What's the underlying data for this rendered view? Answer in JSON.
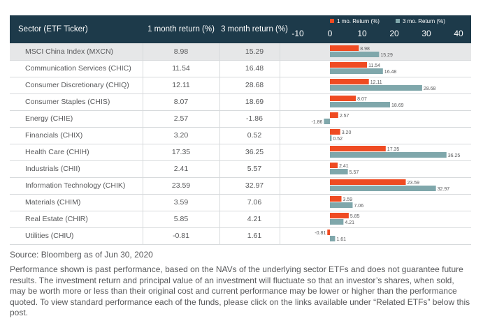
{
  "table": {
    "headers": [
      "Sector (ETF Ticker)",
      "1 month return  (%)",
      "3 month return (%)"
    ]
  },
  "chart_data": {
    "type": "bar",
    "orientation": "horizontal",
    "categories": [
      "MSCI China Index (MXCN)",
      "Communication Services (CHIC)",
      "Consumer Discretionary (CHIQ)",
      "Consumer Staples (CHIS)",
      "Energy (CHIE)",
      "Financials (CHIX)",
      "Health Care (CHIH)",
      "Industrials (CHII)",
      "Information Technology (CHIK)",
      "Materials (CHIM)",
      "Real Estate (CHIR)",
      "Utilities (CHIU)"
    ],
    "series": [
      {
        "name": "1 mo. Return (%)",
        "color": "#ef4b22",
        "values": [
          8.98,
          11.54,
          12.11,
          8.07,
          2.57,
          3.2,
          17.35,
          2.41,
          23.59,
          3.59,
          5.85,
          -0.81
        ]
      },
      {
        "name": "3 mo. Return (%)",
        "color": "#7fa7ab",
        "values": [
          15.29,
          16.48,
          28.68,
          18.69,
          -1.86,
          0.52,
          36.25,
          5.57,
          32.97,
          7.06,
          4.21,
          1.61
        ]
      }
    ],
    "display_1m": [
      "8.98",
      "11.54",
      "12.11",
      "8.07",
      "2.57",
      "3.20",
      "17.35",
      "2.41",
      "23.59",
      "3.59",
      "5.85",
      "-0.81"
    ],
    "display_3m": [
      "15.29",
      "16.48",
      "28.68",
      "18.69",
      "-1.86",
      "0.52",
      "36.25",
      "5.57",
      "32.97",
      "7.06",
      "4.21",
      "1.61"
    ],
    "xticks": [
      "-10",
      "0",
      "10",
      "20",
      "30",
      "40"
    ],
    "xlim": [
      -10,
      40
    ],
    "legend_placement": "top",
    "grid": false
  },
  "footer": {
    "source": "Source: Bloomberg as of Jun 30, 2020",
    "disclaimer": "Performance shown is past performance, based on the NAVs of the underlying sector ETFs and does not guarantee future results. The investment return and principal value of an investment will fluctuate so that an investor’s shares, when sold, may be worth more or less than their original cost and current performance may be lower or higher than the performance quoted. To view standard performance each of the funds, please click on the links available under “Related ETFs” below this post."
  }
}
